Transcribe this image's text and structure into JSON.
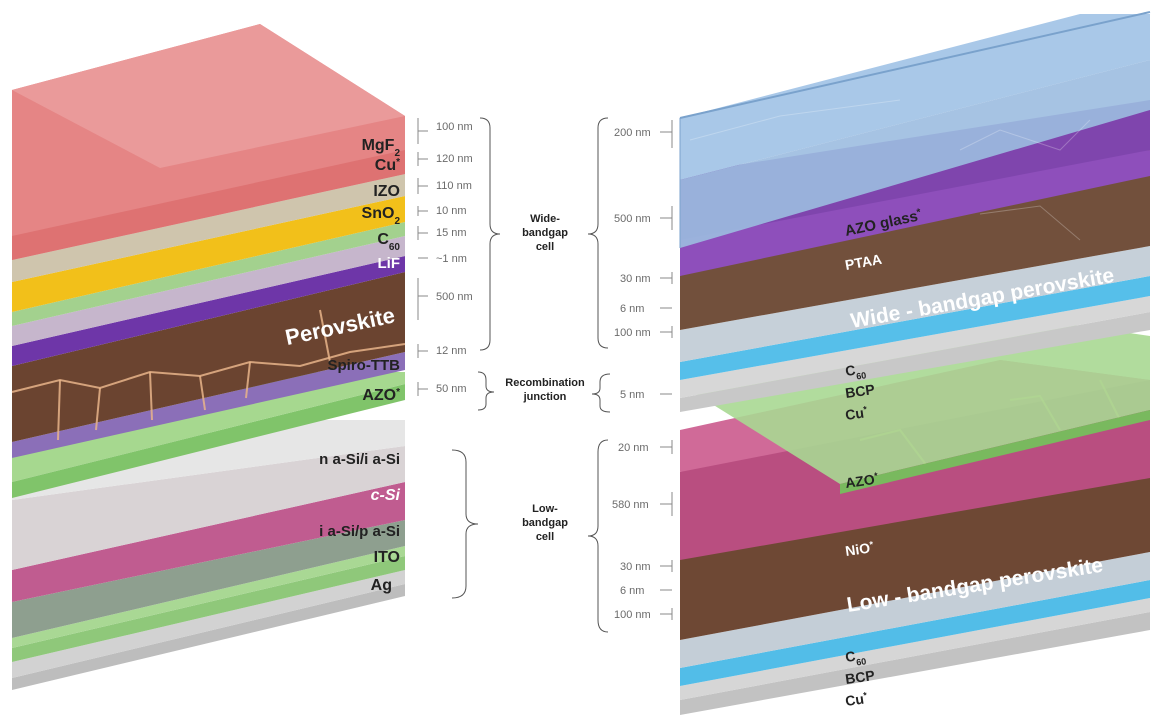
{
  "left_stack": {
    "layers": [
      {
        "id": "mgf2",
        "label": "MgF",
        "sub": "2",
        "sup": "",
        "color": "#e07878",
        "text_color": "dark",
        "thickness": "100 nm"
      },
      {
        "id": "cu",
        "label": "Cu",
        "sub": "",
        "sup": "*",
        "color": "#cfc6b0",
        "text_color": "dark",
        "thickness": "120 nm"
      },
      {
        "id": "izo",
        "label": "IZO",
        "sub": "",
        "sup": "",
        "color": "#f2c218",
        "text_color": "dark",
        "thickness": "110 nm"
      },
      {
        "id": "sno2",
        "label": "SnO",
        "sub": "2",
        "sup": "",
        "color": "#9fd08a",
        "text_color": "dark",
        "thickness": "10 nm"
      },
      {
        "id": "c60",
        "label": "C",
        "sub": "60",
        "sup": "",
        "color": "#c7b7cc",
        "text_color": "dark",
        "thickness": "15 nm"
      },
      {
        "id": "lif",
        "label": "LiF",
        "sub": "",
        "sup": "",
        "color": "#7a3fb0",
        "text_color": "light",
        "thickness": "~1 nm"
      },
      {
        "id": "perovskite",
        "label": "Perovskite",
        "sub": "",
        "sup": "",
        "color": "#6e4632",
        "text_color": "light",
        "thickness": "500 nm"
      },
      {
        "id": "spiro",
        "label": "Spiro-TTB",
        "sub": "",
        "sup": "",
        "color": "#8c6fb8",
        "text_color": "dark",
        "thickness": "12 nm"
      },
      {
        "id": "azo",
        "label": "AZO",
        "sub": "",
        "sup": "*",
        "color": "#8fcf78",
        "text_color": "dark",
        "thickness": "50 nm"
      },
      {
        "id": "nsi",
        "label": "n a-Si/i a-Si",
        "sub": "",
        "sup": "",
        "color": "#d8d2d4",
        "text_color": "dark",
        "thickness": ""
      },
      {
        "id": "csi",
        "label": "c-Si",
        "sub": "",
        "sup": "",
        "color": "#c05c90",
        "text_color": "light",
        "thickness": ""
      },
      {
        "id": "psi",
        "label": "i a-Si/p a-Si",
        "sub": "",
        "sup": "",
        "color": "#9aa89a",
        "text_color": "dark",
        "thickness": ""
      },
      {
        "id": "ito",
        "label": "ITO",
        "sub": "",
        "sup": "",
        "color": "#9fd08a",
        "text_color": "dark",
        "thickness": ""
      },
      {
        "id": "ag",
        "label": "Ag",
        "sub": "",
        "sup": "",
        "color": "#cccccc",
        "text_color": "dark",
        "thickness": ""
      }
    ]
  },
  "groups": {
    "wide": {
      "line1": "Wide-",
      "line2": "bandgap",
      "line3": "cell"
    },
    "recomb": {
      "line1": "Recombination",
      "line2": "junction"
    },
    "low": {
      "line1": "Low-",
      "line2": "bandgap",
      "line3": "cell"
    }
  },
  "right_stack": {
    "layers": [
      {
        "id": "azo_glass",
        "label": "AZO glass",
        "sub": "",
        "sup": "*",
        "color": "#9fc4e8",
        "text_color": "dark",
        "thickness": "200 nm"
      },
      {
        "id": "ptaa",
        "label": "PTAA",
        "sub": "",
        "sup": "",
        "color": "#8a4fb5",
        "text_color": "light",
        "thickness": ""
      },
      {
        "id": "wbg_pvk",
        "label": "Wide - bandgap perovskite",
        "sub": "",
        "sup": "",
        "color": "#76503c",
        "text_color": "light",
        "thickness": "500 nm"
      },
      {
        "id": "c60_top",
        "label": "C",
        "sub": "60",
        "sup": "",
        "color": "#c9d3dc",
        "text_color": "dark",
        "thickness": "30 nm"
      },
      {
        "id": "bcp_top",
        "label": "BCP",
        "sub": "",
        "sup": "",
        "color": "#5cc3ee",
        "text_color": "dark",
        "thickness": "6 nm"
      },
      {
        "id": "cu_top",
        "label": "Cu",
        "sub": "",
        "sup": "*",
        "color": "#cfcfcf",
        "text_color": "dark",
        "thickness": "100 nm"
      },
      {
        "id": "azo_mid",
        "label": "AZO",
        "sub": "",
        "sup": "*",
        "color": "#a7d88e",
        "text_color": "dark",
        "thickness": "5 nm"
      },
      {
        "id": "nio",
        "label": "NiO",
        "sub": "",
        "sup": "*",
        "color": "#c45c8a",
        "text_color": "light",
        "thickness": "20 nm"
      },
      {
        "id": "lbg_pvk",
        "label": "Low - bandgap perovskite",
        "sub": "",
        "sup": "",
        "color": "#76503c",
        "text_color": "light",
        "thickness": "580 nm"
      },
      {
        "id": "c60_bot",
        "label": "C",
        "sub": "60",
        "sup": "",
        "color": "#c9d3dc",
        "text_color": "dark",
        "thickness": "30 nm"
      },
      {
        "id": "bcp_bot",
        "label": "BCP",
        "sub": "",
        "sup": "",
        "color": "#5cc3ee",
        "text_color": "dark",
        "thickness": "6 nm"
      },
      {
        "id": "cu_bot",
        "label": "Cu",
        "sub": "",
        "sup": "*",
        "color": "#cfcfcf",
        "text_color": "dark",
        "thickness": "100 nm"
      }
    ]
  }
}
